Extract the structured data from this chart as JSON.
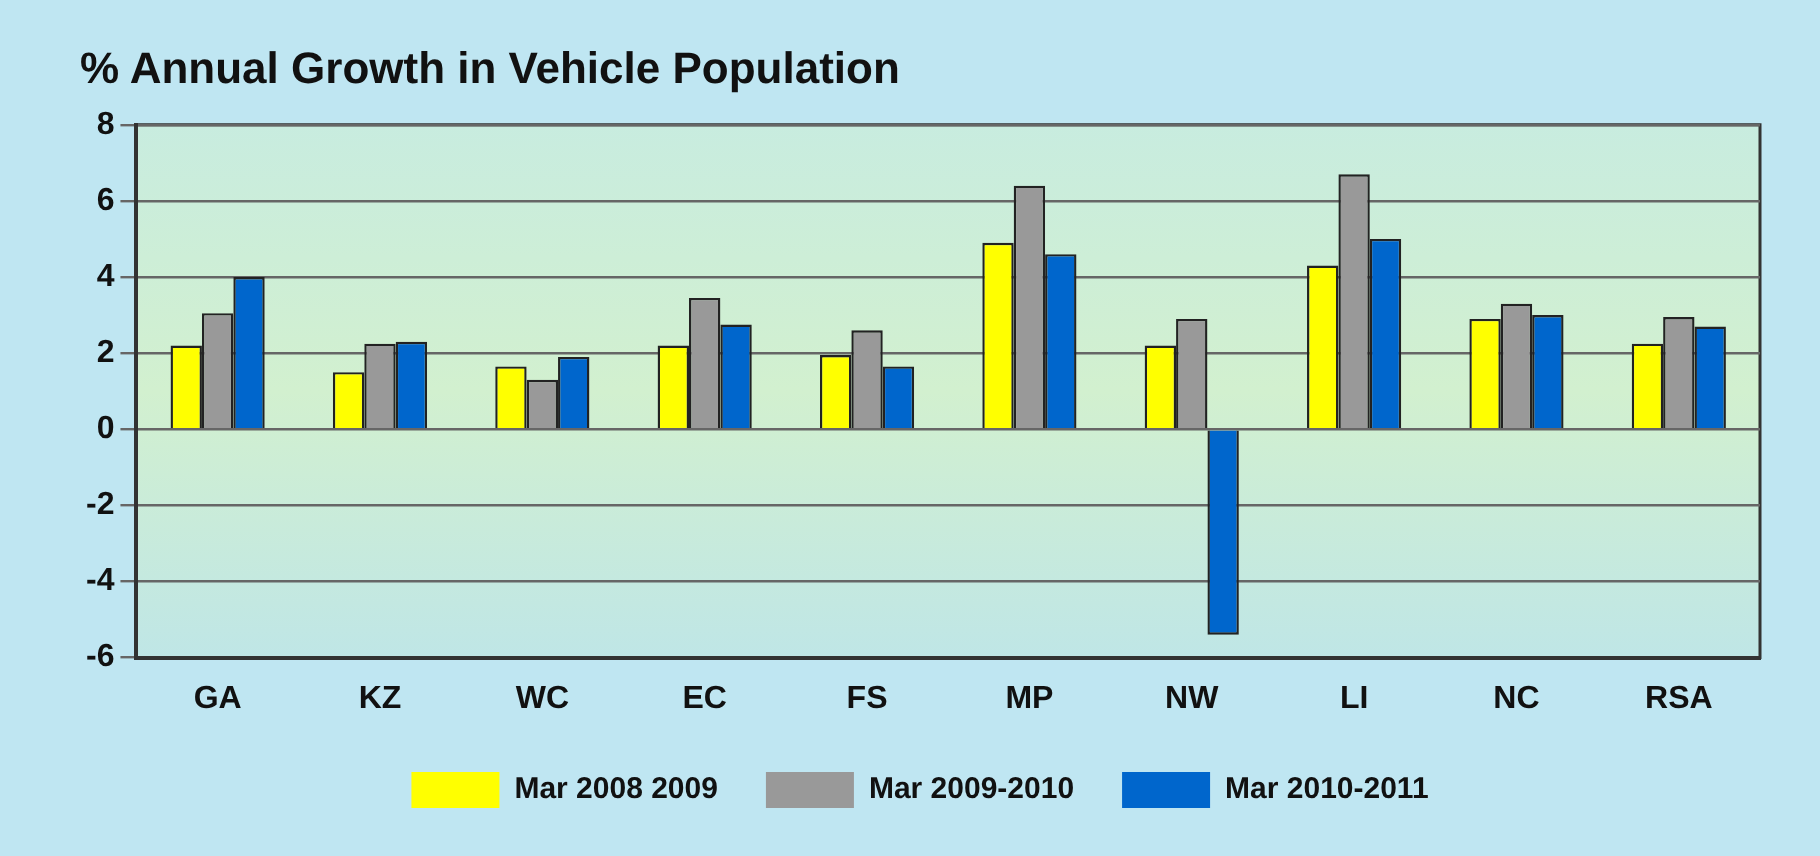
{
  "chart_data": {
    "type": "bar",
    "title": "% Annual Growth in Vehicle Population",
    "categories": [
      "GA",
      "KZ",
      "WC",
      "EC",
      "FS",
      "MP",
      "NW",
      "LI",
      "NC",
      "RSA"
    ],
    "series": [
      {
        "name": "Mar 2008 2009",
        "color": "#ffff00",
        "values": [
          2.2,
          1.5,
          1.65,
          2.2,
          1.95,
          4.9,
          2.2,
          4.3,
          2.9,
          2.25
        ]
      },
      {
        "name": "Mar 2009-2010",
        "color": "#999999",
        "values": [
          3.05,
          2.25,
          1.3,
          3.45,
          2.6,
          6.4,
          2.9,
          6.7,
          3.3,
          2.95
        ]
      },
      {
        "name": "Mar 2010-2011",
        "color": "#0066cc",
        "values": [
          4.0,
          2.3,
          1.9,
          2.75,
          1.65,
          4.6,
          -5.4,
          5.0,
          3.0,
          2.7
        ]
      }
    ],
    "ylim": [
      -6,
      8
    ],
    "yticks": [
      -6,
      -4,
      -2,
      0,
      2,
      4,
      6,
      8
    ],
    "grid": "y",
    "legend": "bottom"
  }
}
